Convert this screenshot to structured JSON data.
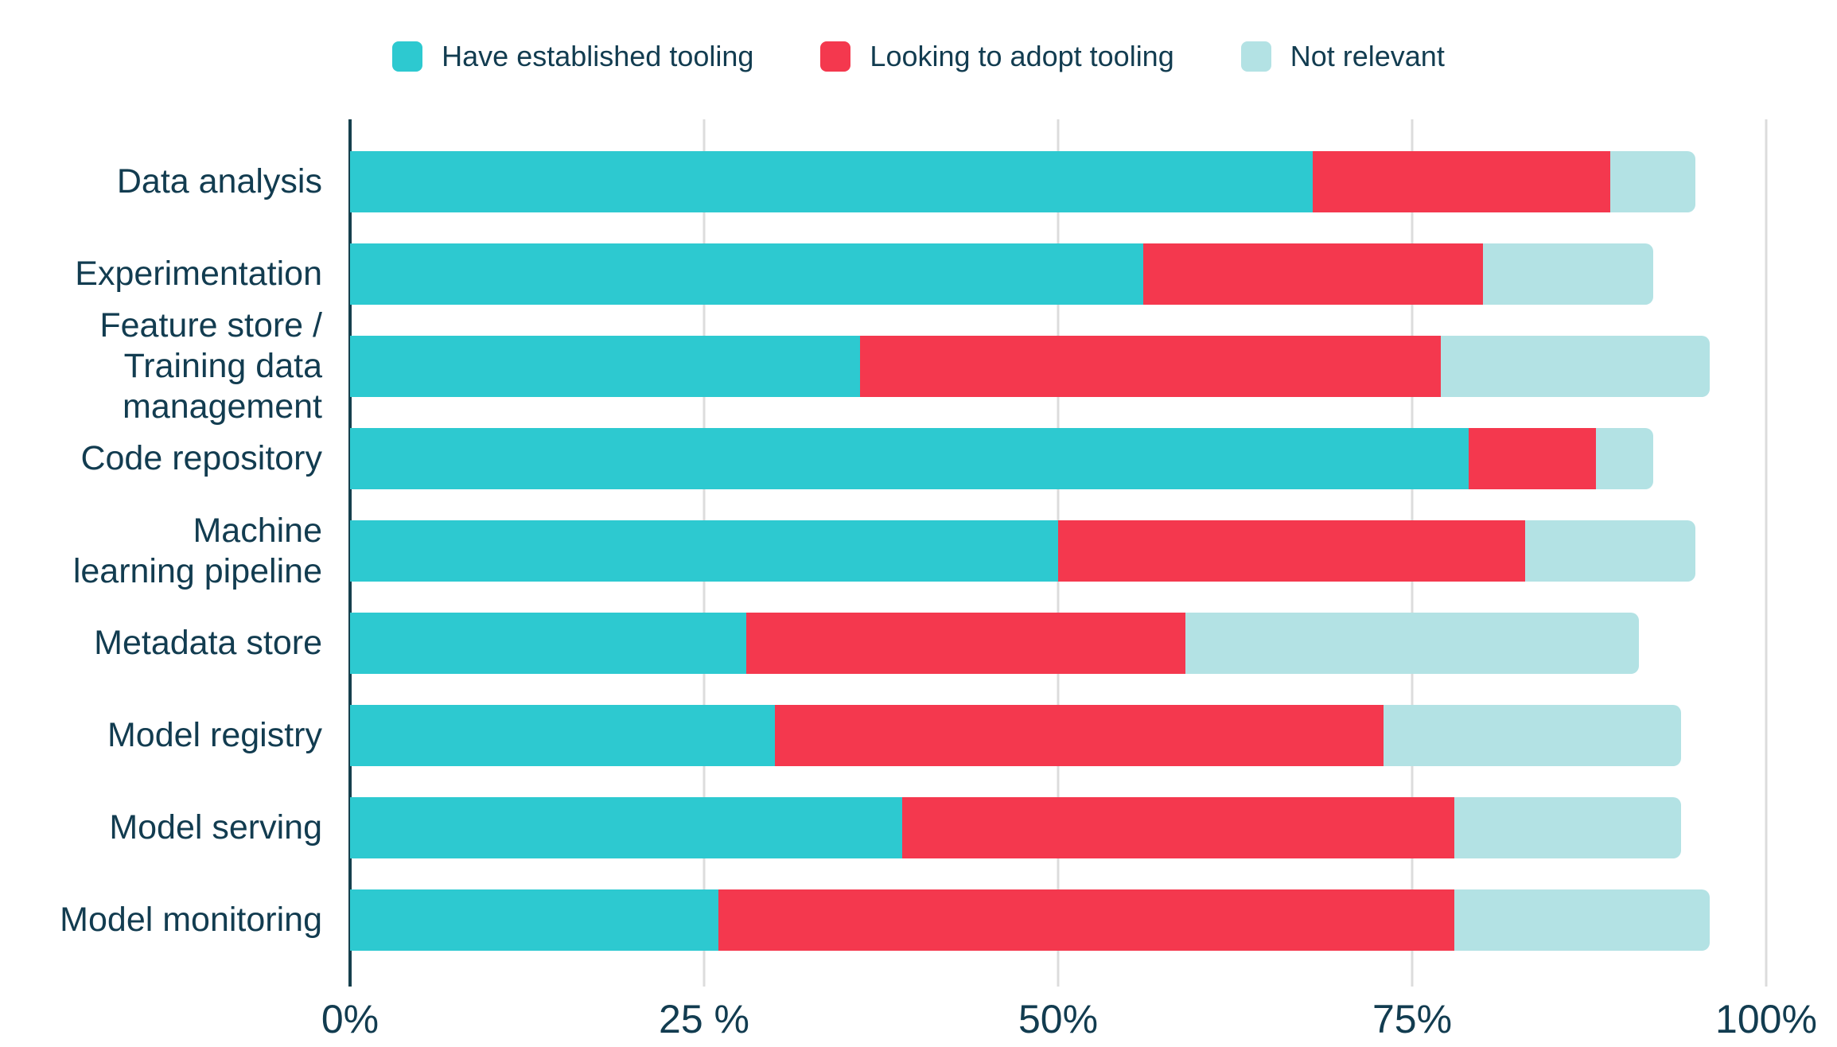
{
  "legend": [
    {
      "label": "Have established tooling",
      "color": "#2dc9d0"
    },
    {
      "label": "Looking to adopt tooling",
      "color": "#f4384e"
    },
    {
      "label": "Not relevant",
      "color": "#b3e2e4"
    }
  ],
  "chart_data": {
    "type": "bar",
    "orientation": "horizontal",
    "stacked": true,
    "title": "",
    "xlabel": "",
    "ylabel": "",
    "categories": [
      "Data analysis",
      "Experimentation",
      "Feature store /\nTraining data\nmanagement",
      "Code repository",
      "Machine\nlearning pipeline",
      "Metadata store",
      "Model registry",
      "Model serving",
      "Model monitoring"
    ],
    "series": [
      {
        "name": "Have established tooling",
        "color": "#2dc9d0",
        "values": [
          68,
          56,
          36,
          79,
          50,
          28,
          30,
          39,
          26
        ]
      },
      {
        "name": "Looking to adopt tooling",
        "color": "#f4384e",
        "values": [
          21,
          24,
          41,
          9,
          33,
          31,
          43,
          39,
          52
        ]
      },
      {
        "name": "Not relevant",
        "color": "#b3e2e4",
        "values": [
          6,
          12,
          19,
          4,
          12,
          32,
          21,
          16,
          18
        ]
      }
    ],
    "x_ticks": [
      "0%",
      "25 %",
      "50%",
      "75%",
      "100%"
    ],
    "x_tick_values": [
      0,
      25,
      50,
      75,
      100
    ],
    "xlim": [
      0,
      100
    ],
    "grid": true,
    "legend_position": "top",
    "text_color": "#123c50",
    "gridline_color": "#dcdcdc",
    "axis_line_color": "#16404d"
  }
}
